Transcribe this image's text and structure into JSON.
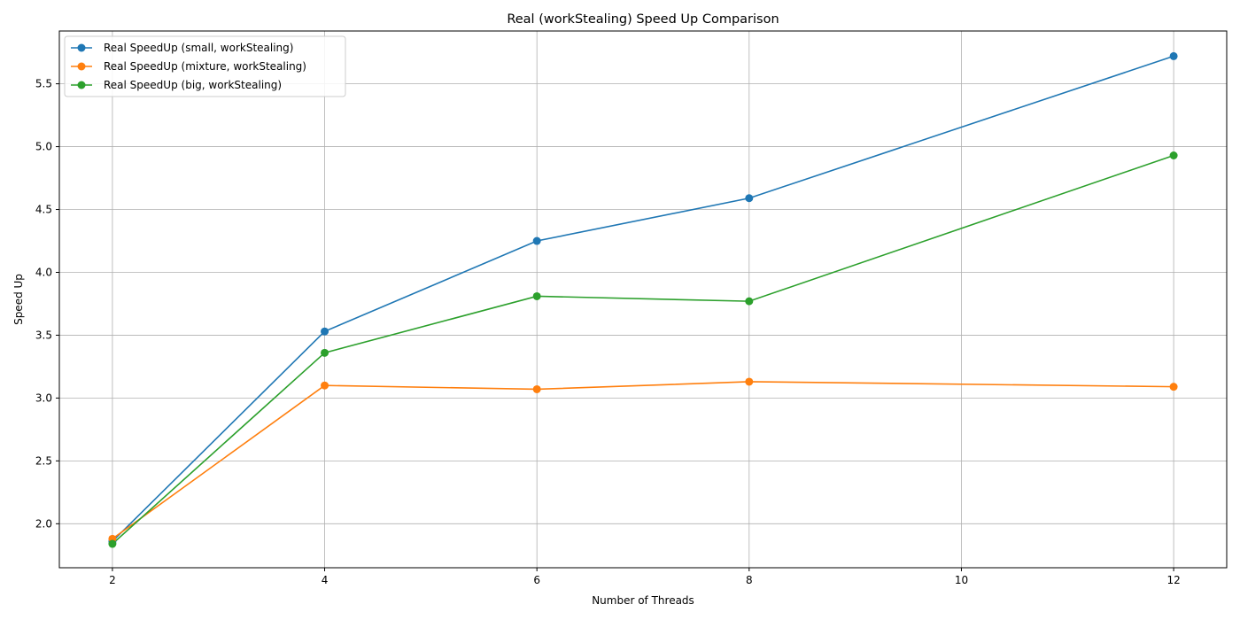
{
  "chart_data": {
    "type": "line",
    "title": "Real (workStealing) Speed Up Comparison",
    "xlabel": "Number of Threads",
    "ylabel": "Speed Up",
    "x": [
      2,
      4,
      6,
      8,
      12
    ],
    "xticks": [
      2,
      4,
      6,
      8,
      10,
      12
    ],
    "yticks": [
      2.0,
      2.5,
      3.0,
      3.5,
      4.0,
      4.5,
      5.0,
      5.5
    ],
    "xlim": [
      1.5,
      12.5
    ],
    "ylim": [
      1.65,
      5.92
    ],
    "grid": true,
    "legend_position": "top-left",
    "series": [
      {
        "name": "Real SpeedUp (small, workStealing)",
        "color": "#1f77b4",
        "values": [
          1.86,
          3.53,
          4.25,
          4.59,
          5.72
        ]
      },
      {
        "name": "Real SpeedUp (mixture, workStealing)",
        "color": "#ff7f0e",
        "values": [
          1.88,
          3.1,
          3.07,
          3.13,
          3.09
        ]
      },
      {
        "name": "Real SpeedUp (big, workStealing)",
        "color": "#2ca02c",
        "values": [
          1.84,
          3.36,
          3.81,
          3.77,
          4.93
        ]
      }
    ]
  }
}
